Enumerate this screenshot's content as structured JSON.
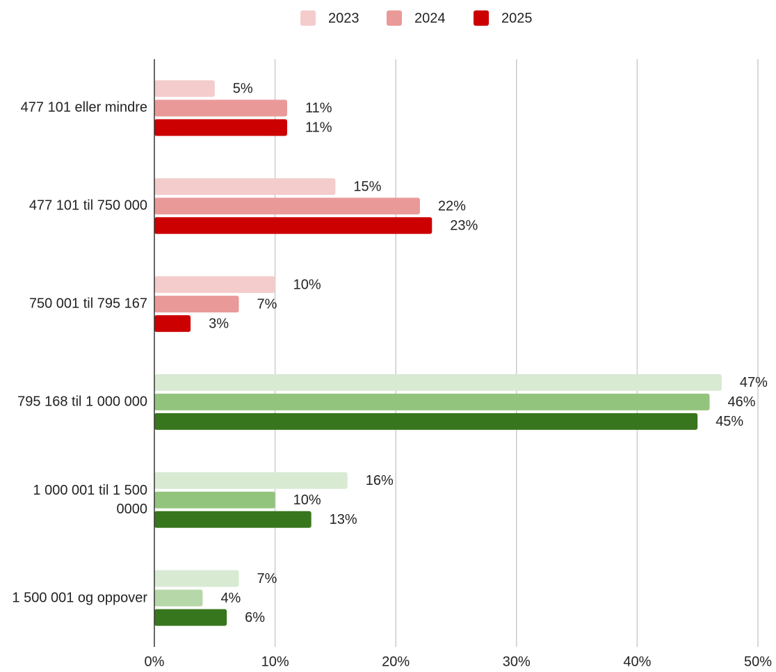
{
  "chart_data": {
    "type": "hbar",
    "categories": [
      "477 101 eller mindre",
      "477 101 til 750 000",
      "750 001 til 795 167",
      "795 168 til 1 000 000",
      "1 000 001 til 1 500 0000",
      "1 500 001 og oppover"
    ],
    "series": [
      {
        "name": "2023",
        "color": "#f4cccc",
        "colors": [
          "#f4cccc",
          "#f4cccc",
          "#f4cccc",
          "#d9ead3",
          "#d9ead3",
          "#d9ead3"
        ],
        "values": [
          5,
          15,
          10,
          47,
          16,
          7
        ],
        "value_labels": [
          "5%",
          "15%",
          "10%",
          "47%",
          "16%",
          "7%"
        ]
      },
      {
        "name": "2024",
        "color": "#ea9999",
        "colors": [
          "#ea9999",
          "#ea9999",
          "#ea9999",
          "#93c47d",
          "#93c47d",
          "#b6d7a8"
        ],
        "values": [
          11,
          22,
          7,
          46,
          10,
          4
        ],
        "value_labels": [
          "11%",
          "22%",
          "7%",
          "46%",
          "10%",
          "4%"
        ]
      },
      {
        "name": "2025",
        "color": "#cc0000",
        "colors": [
          "#cc0000",
          "#cc0000",
          "#cc0000",
          "#38761d",
          "#38761d",
          "#38761d"
        ],
        "values": [
          11,
          23,
          3,
          45,
          13,
          6
        ],
        "value_labels": [
          "11%",
          "23%",
          "3%",
          "45%",
          "13%",
          "6%"
        ]
      }
    ],
    "xlim": [
      0,
      50
    ],
    "xticks": [
      {
        "value": 0,
        "label": "0%"
      },
      {
        "value": 10,
        "label": "10%"
      },
      {
        "value": 20,
        "label": "20%"
      },
      {
        "value": 30,
        "label": "30%"
      },
      {
        "value": 40,
        "label": "40%"
      },
      {
        "value": 50,
        "label": "50%"
      }
    ],
    "grid": true,
    "legend": "top"
  }
}
